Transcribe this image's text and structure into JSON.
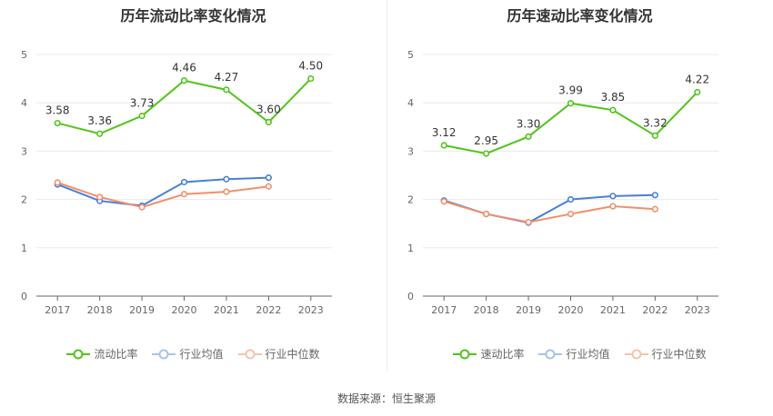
{
  "colors": {
    "main": "#52c41a",
    "avg": "#4a7fd6",
    "median": "#f0906a",
    "grid": "#e8e8f0",
    "axis": "#666666"
  },
  "source": "数据来源：恒生聚源",
  "chart_data": [
    {
      "type": "line",
      "title": "历年流动比率变化情况",
      "x": [
        "2017",
        "2018",
        "2019",
        "2020",
        "2021",
        "2022",
        "2023"
      ],
      "ylim": [
        0,
        5
      ],
      "yticks": [
        "0",
        "1",
        "2",
        "3",
        "4",
        "5"
      ],
      "grid": true,
      "legend_position": "bottom",
      "series": [
        {
          "name": "流动比率",
          "values": [
            3.58,
            3.36,
            3.73,
            4.46,
            4.27,
            3.6,
            4.5
          ],
          "labels": [
            "3.58",
            "3.36",
            "3.73",
            "4.46",
            "4.27",
            "3.60",
            "4.50"
          ]
        },
        {
          "name": "行业均值",
          "values": [
            2.31,
            1.97,
            1.87,
            2.36,
            2.42,
            2.45,
            null
          ]
        },
        {
          "name": "行业中位数",
          "values": [
            2.35,
            2.05,
            1.84,
            2.11,
            2.16,
            2.27,
            null
          ]
        }
      ]
    },
    {
      "type": "line",
      "title": "历年速动比率变化情况",
      "x": [
        "2017",
        "2018",
        "2019",
        "2020",
        "2021",
        "2022",
        "2023"
      ],
      "ylim": [
        0,
        5
      ],
      "yticks": [
        "0",
        "1",
        "2",
        "3",
        "4",
        "5"
      ],
      "grid": true,
      "legend_position": "bottom",
      "series": [
        {
          "name": "速动比率",
          "values": [
            3.12,
            2.95,
            3.3,
            3.99,
            3.85,
            3.32,
            4.22
          ],
          "labels": [
            "3.12",
            "2.95",
            "3.30",
            "3.99",
            "3.85",
            "3.32",
            "4.22"
          ]
        },
        {
          "name": "行业均值",
          "values": [
            1.98,
            1.7,
            1.52,
            2.0,
            2.07,
            2.09,
            null
          ]
        },
        {
          "name": "行业中位数",
          "values": [
            1.96,
            1.7,
            1.53,
            1.7,
            1.86,
            1.8,
            null
          ]
        }
      ]
    }
  ]
}
